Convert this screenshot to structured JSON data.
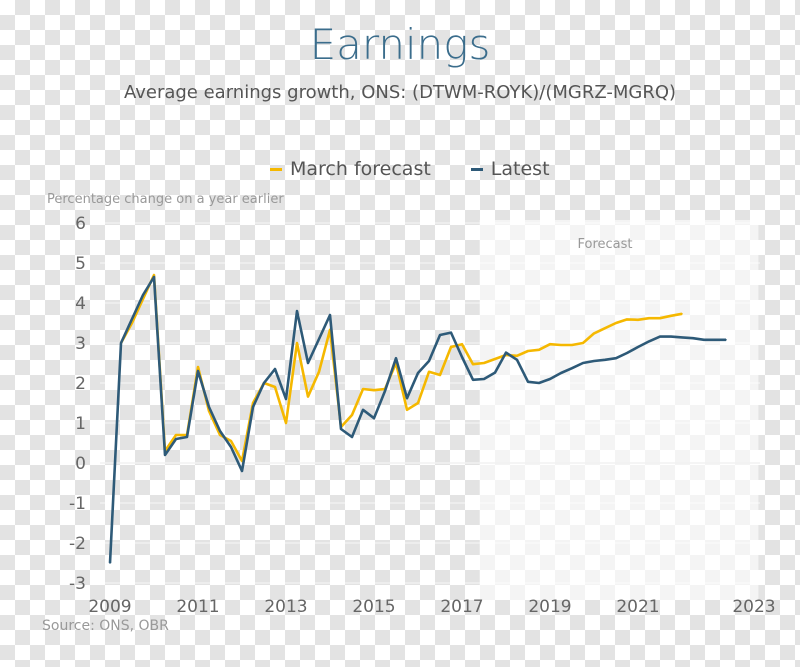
{
  "header": {
    "title": "Earnings",
    "subtitle": "Average earnings growth, ONS: (DTWM-ROYK)/(MGRZ-MGRQ)"
  },
  "footer": {
    "source": "Source: ONS, OBR"
  },
  "chart_data": {
    "type": "line",
    "title": "Earnings",
    "subtitle": "Average earnings growth, ONS: (DTWM-ROYK)/(MGRZ-MGRQ)",
    "ylabel": "Percentage change on a year earlier",
    "xlabel": "",
    "ylim": [
      -3,
      6
    ],
    "yticks": [
      "6",
      "5",
      "4",
      "3",
      "2",
      "1",
      "0",
      "-1",
      "-2",
      "-3"
    ],
    "xticks": [
      "2009",
      "2011",
      "2013",
      "2015",
      "2017",
      "2019",
      "2021",
      "2023"
    ],
    "xlim": [
      2009,
      2023.6
    ],
    "grid": true,
    "legend_position": "top",
    "forecast_label": "Forecast",
    "forecast_start": 2017.4,
    "x_start": "2009 Q1",
    "frequency": "quarterly",
    "series": [
      {
        "name": "March forecast",
        "color": "#f5b800",
        "values": [
          null,
          3.0,
          3.5,
          4.1,
          4.7,
          0.3,
          0.7,
          0.7,
          2.4,
          1.3,
          0.7,
          0.55,
          0.05,
          1.5,
          2.0,
          1.9,
          1.0,
          3.0,
          1.66,
          2.28,
          3.33,
          0.9,
          1.2,
          1.85,
          1.82,
          1.85,
          2.5,
          1.33,
          1.5,
          2.28,
          2.2,
          2.9,
          2.97,
          2.47,
          2.5,
          2.6,
          2.7,
          2.68,
          2.8,
          2.83,
          2.97,
          2.95,
          2.95,
          3.0,
          3.24,
          3.37,
          3.5,
          3.59,
          3.58,
          3.62,
          3.62,
          3.68,
          3.73
        ]
      },
      {
        "name": "Latest",
        "color": "#2e5a78",
        "values": [
          -2.5,
          3.0,
          3.6,
          4.2,
          4.65,
          0.2,
          0.6,
          0.65,
          2.3,
          1.4,
          0.8,
          0.4,
          -0.2,
          1.4,
          2.0,
          2.35,
          1.6,
          3.8,
          2.5,
          3.1,
          3.7,
          0.85,
          0.65,
          1.33,
          1.12,
          1.8,
          2.62,
          1.62,
          2.25,
          2.55,
          3.2,
          3.26,
          2.65,
          2.08,
          2.1,
          2.26,
          2.76,
          2.58,
          2.03,
          2.0,
          2.1,
          2.25,
          2.37,
          2.5,
          2.55,
          2.58,
          2.62,
          2.75,
          2.9,
          3.04,
          3.16,
          3.16,
          3.14,
          3.12,
          3.08,
          3.08,
          3.08
        ]
      }
    ]
  }
}
